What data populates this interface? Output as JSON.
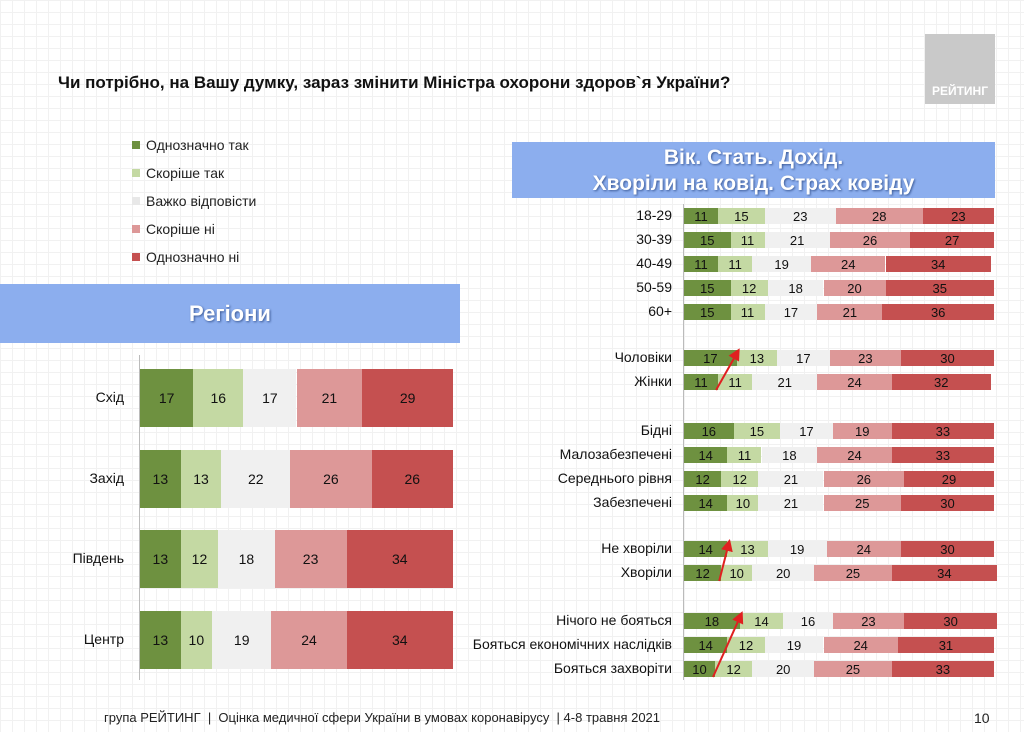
{
  "title": "Чи потрібно, на Вашу думку, зараз змінити Міністра охорони здоров`я України?",
  "logo": "РЕЙТИНГ",
  "footer": "група РЕЙТИНГ  |  Оцінка медичної сфери України в умовах коронавірусу  | 4-8 травня 2021",
  "page_number": "10",
  "banner_left": "Регіони",
  "banner_right": [
    "Вік. Стать. Дохід.",
    "Хворіли на ковід. Страх ковіду"
  ],
  "chart_data": [
    {
      "type": "bar",
      "orientation": "horizontal",
      "stacked": true,
      "title": "Регіони",
      "legend": [
        "Однозначно так",
        "Скоріше так",
        "Важко відповісти",
        "Скоріше ні",
        "Однозначно ні"
      ],
      "colors": [
        "#6e9140",
        "#c4d9a3",
        "#f0f0f0",
        "#dd9898",
        "#c55050"
      ],
      "categories": [
        "Схід",
        "Захід",
        "Південь",
        "Центр"
      ],
      "series": [
        {
          "name": "Однозначно так",
          "values": [
            17,
            13,
            13,
            13
          ]
        },
        {
          "name": "Скоріше так",
          "values": [
            16,
            13,
            12,
            10
          ]
        },
        {
          "name": "Важко відповісти",
          "values": [
            17,
            22,
            18,
            19
          ]
        },
        {
          "name": "Скоріше ні",
          "values": [
            21,
            26,
            23,
            24
          ]
        },
        {
          "name": "Однозначно ні",
          "values": [
            29,
            26,
            34,
            34
          ]
        }
      ]
    },
    {
      "type": "bar",
      "orientation": "horizontal",
      "stacked": true,
      "title": "Вік. Стать. Дохід. Хворіли на ковід. Страх ковіду",
      "groups": [
        {
          "categories": [
            "18-29",
            "30-39",
            "40-49",
            "50-59",
            "60+"
          ],
          "values": [
            [
              11,
              15,
              23,
              28,
              23
            ],
            [
              15,
              11,
              21,
              26,
              27
            ],
            [
              11,
              11,
              19,
              24,
              34
            ],
            [
              15,
              12,
              18,
              20,
              35
            ],
            [
              15,
              11,
              17,
              21,
              36
            ]
          ]
        },
        {
          "categories": [
            "Чоловіки",
            "Жінки"
          ],
          "values": [
            [
              17,
              13,
              17,
              23,
              30
            ],
            [
              11,
              11,
              21,
              24,
              32
            ]
          ],
          "arrow": true
        },
        {
          "categories": [
            "Бідні",
            "Малозабезпечені",
            "Середнього рівня",
            "Забезпечені"
          ],
          "values": [
            [
              16,
              15,
              17,
              19,
              33
            ],
            [
              14,
              11,
              18,
              24,
              33
            ],
            [
              12,
              12,
              21,
              26,
              29
            ],
            [
              14,
              10,
              21,
              25,
              30
            ]
          ]
        },
        {
          "categories": [
            "Не хворіли",
            "Хворіли"
          ],
          "values": [
            [
              14,
              13,
              19,
              24,
              30
            ],
            [
              12,
              10,
              20,
              25,
              34
            ]
          ],
          "arrow": true
        },
        {
          "categories": [
            "Нічого не бояться",
            "Бояться економічних наслідків",
            "Бояться захворіти"
          ],
          "values": [
            [
              18,
              14,
              16,
              23,
              30
            ],
            [
              14,
              12,
              19,
              24,
              31
            ],
            [
              10,
              12,
              20,
              25,
              33
            ]
          ],
          "arrow": true
        }
      ]
    }
  ]
}
